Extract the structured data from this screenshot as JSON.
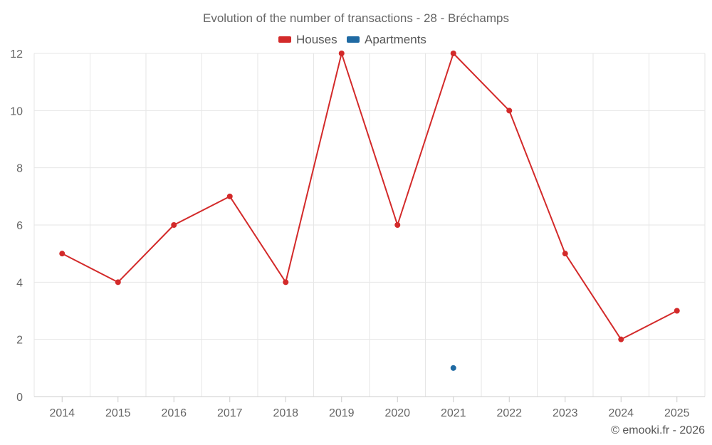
{
  "chart_data": {
    "type": "line",
    "title": "Evolution of the number of transactions - 28 - Bréchamps",
    "categories": [
      "2014",
      "2015",
      "2016",
      "2017",
      "2018",
      "2019",
      "2020",
      "2021",
      "2022",
      "2023",
      "2024",
      "2025"
    ],
    "series": [
      {
        "name": "Houses",
        "color": "#d32a2a",
        "values": [
          5,
          4,
          6,
          7,
          4,
          12,
          6,
          12,
          10,
          5,
          2,
          3
        ]
      },
      {
        "name": "Apartments",
        "color": "#1f6aa3",
        "values": [
          null,
          null,
          null,
          null,
          null,
          null,
          null,
          1,
          null,
          null,
          null,
          null
        ]
      }
    ],
    "ylim": [
      0,
      12
    ],
    "yticks": [
      0,
      2,
      4,
      6,
      8,
      10,
      12
    ],
    "grid": true,
    "legend_position": "top-center",
    "credit": "© emooki.fr - 2026"
  }
}
